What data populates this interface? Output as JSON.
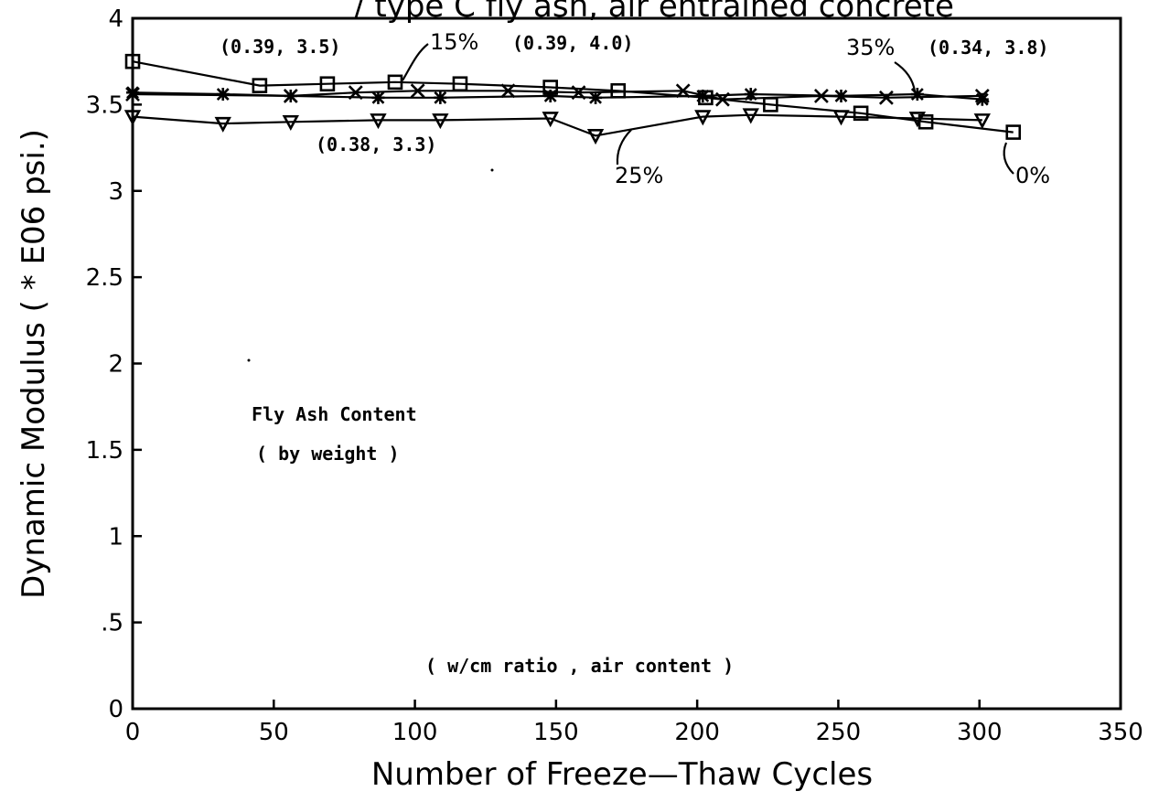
{
  "chart_data": {
    "type": "line",
    "title_fragment": "/ type C fly ash, air entrained concrete",
    "xlabel": "Number of Freeze—Thaw Cycles",
    "ylabel": "Dynamic Modulus ( * E06 psi.)",
    "xlim": [
      0,
      350
    ],
    "ylim": [
      0,
      4
    ],
    "x_ticks": [
      0,
      50,
      100,
      150,
      200,
      250,
      300,
      350
    ],
    "x_tick_labels": [
      "0",
      "50",
      "100",
      "150",
      "200",
      "250",
      "300",
      "350"
    ],
    "y_ticks": [
      0,
      0.5,
      1,
      1.5,
      2,
      2.5,
      3,
      3.5,
      4
    ],
    "y_tick_labels": [
      "0",
      ".5",
      "1",
      "1.5",
      "2",
      "2.5",
      "3",
      "3.5",
      "4"
    ],
    "grid": false,
    "series": [
      {
        "name": "0%",
        "marker": "square",
        "x": [
          0,
          45,
          69,
          93,
          116,
          148,
          172,
          203,
          226,
          258,
          281,
          312
        ],
        "y": [
          3.75,
          3.61,
          3.62,
          3.63,
          3.62,
          3.6,
          3.58,
          3.54,
          3.5,
          3.45,
          3.4,
          3.34
        ]
      },
      {
        "name": "15%",
        "marker": "x",
        "x": [
          0,
          56,
          79,
          101,
          133,
          158,
          195,
          209,
          244,
          267,
          301
        ],
        "y": [
          3.56,
          3.55,
          3.57,
          3.58,
          3.58,
          3.57,
          3.58,
          3.53,
          3.55,
          3.54,
          3.55
        ]
      },
      {
        "name": "25%",
        "marker": "triangle-down",
        "x": [
          0,
          32,
          56,
          87,
          109,
          148,
          164,
          202,
          219,
          251,
          278,
          301
        ],
        "y": [
          3.43,
          3.39,
          3.4,
          3.41,
          3.41,
          3.42,
          3.32,
          3.43,
          3.44,
          3.43,
          3.42,
          3.41
        ]
      },
      {
        "name": "35%",
        "marker": "star",
        "x": [
          0,
          32,
          56,
          87,
          109,
          148,
          164,
          202,
          219,
          251,
          278,
          301
        ],
        "y": [
          3.57,
          3.56,
          3.55,
          3.54,
          3.54,
          3.55,
          3.54,
          3.55,
          3.56,
          3.55,
          3.56,
          3.53
        ]
      }
    ],
    "annotations": {
      "a_039_35": "(0.39, 3.5)",
      "a_15": "15%",
      "a_039_40": "(0.39, 4.0)",
      "a_35": "35%",
      "a_034_38": "(0.34, 3.8)",
      "a_038_33": "(0.38, 3.3)",
      "a_25": "25%",
      "a_0": "0%",
      "legend_line1": "Fly Ash Content",
      "legend_line2": "( by weight )",
      "footnote": "( w/cm ratio , air content )"
    }
  }
}
